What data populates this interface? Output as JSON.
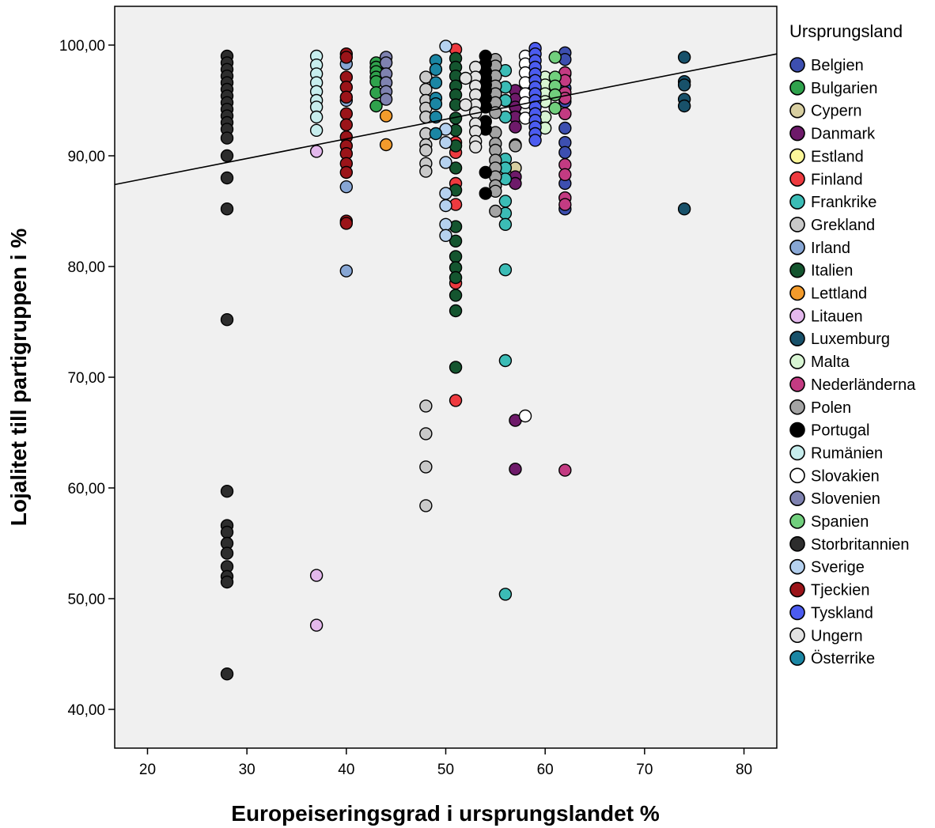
{
  "chart_data": {
    "type": "scatter",
    "title": "",
    "xlabel": "Europeiseringsgrad i ursprungslandet %",
    "ylabel": "Lojalitet till partigruppen i %",
    "xlim": [
      16.7,
      83.3
    ],
    "ylim": [
      36.5,
      103.5
    ],
    "xticks": [
      "20",
      "30",
      "40",
      "50",
      "60",
      "70",
      "80"
    ],
    "yticks": [
      "40,00",
      "50,00",
      "60,00",
      "70,00",
      "80,00",
      "90,00",
      "100,00"
    ],
    "grid": false,
    "background": "#f0f0f0",
    "legend": {
      "title": "Ursprungsland",
      "placement": "right"
    },
    "fit_line": {
      "x": [
        16.7,
        83.3
      ],
      "y": [
        87.4,
        99.2
      ]
    },
    "series": [
      {
        "name": "Belgien",
        "color": "#3d4fb0",
        "points": [
          [
            62,
            99.3
          ],
          [
            62,
            98.7
          ],
          [
            62,
            97.4
          ],
          [
            62,
            96.1
          ],
          [
            62,
            94.9
          ],
          [
            62,
            93.8
          ],
          [
            62,
            92.5
          ],
          [
            62,
            91.2
          ],
          [
            62,
            90.3
          ],
          [
            62,
            87.5
          ],
          [
            62,
            86.2
          ],
          [
            62,
            85.2
          ]
        ]
      },
      {
        "name": "Bulgarien",
        "color": "#2fa24c",
        "points": [
          [
            43,
            98.4
          ],
          [
            43,
            98
          ],
          [
            43,
            97.6
          ],
          [
            43,
            97.1
          ],
          [
            43,
            96.7
          ],
          [
            43,
            95.7
          ],
          [
            43,
            94.5
          ]
        ]
      },
      {
        "name": "Cypern",
        "color": "#d8cfa1",
        "points": [
          [
            57,
            93.6
          ],
          [
            57,
            91
          ],
          [
            57,
            88.9
          ]
        ]
      },
      {
        "name": "Danmark",
        "color": "#6e1a6a",
        "points": [
          [
            57,
            95.9
          ],
          [
            57,
            95.1
          ],
          [
            57,
            94.4
          ],
          [
            57,
            93.5
          ],
          [
            57,
            92.6
          ],
          [
            57,
            88.1
          ],
          [
            57,
            87.5
          ],
          [
            57,
            66.1
          ],
          [
            57,
            61.7
          ]
        ]
      },
      {
        "name": "Estland",
        "color": "#fdf79a",
        "points": []
      },
      {
        "name": "Finland",
        "color": "#ee3a3f",
        "points": [
          [
            51,
            99.6
          ],
          [
            51,
            91.2
          ],
          [
            51,
            90.3
          ],
          [
            51,
            87.5
          ],
          [
            51,
            85.6
          ],
          [
            51,
            78.5
          ],
          [
            51,
            67.9
          ]
        ]
      },
      {
        "name": "Frankrike",
        "color": "#3bbcb6",
        "points": [
          [
            56,
            97.7
          ],
          [
            56,
            96.2
          ],
          [
            56,
            95
          ],
          [
            56,
            93.5
          ],
          [
            56,
            89.7
          ],
          [
            56,
            88.9
          ],
          [
            56,
            87.9
          ],
          [
            56,
            85.9
          ],
          [
            56,
            84.8
          ],
          [
            56,
            83.8
          ],
          [
            56,
            79.7
          ],
          [
            56,
            71.5
          ],
          [
            56,
            50.4
          ]
        ]
      },
      {
        "name": "Grekland",
        "color": "#c9c9c9",
        "points": [
          [
            48,
            97.1
          ],
          [
            48,
            96
          ],
          [
            48,
            95
          ],
          [
            48,
            94.3
          ],
          [
            48,
            93.5
          ],
          [
            48,
            92
          ],
          [
            48,
            91
          ],
          [
            48,
            90.5
          ],
          [
            48,
            89.3
          ],
          [
            48,
            88.6
          ],
          [
            48,
            67.4
          ],
          [
            48,
            64.9
          ],
          [
            48,
            61.9
          ],
          [
            48,
            58.4
          ]
        ]
      },
      {
        "name": "Irland",
        "color": "#87a6d4",
        "points": [
          [
            40,
            98.3
          ],
          [
            40,
            95
          ],
          [
            40,
            87.2
          ],
          [
            40,
            79.6
          ]
        ]
      },
      {
        "name": "Italien",
        "color": "#14552f",
        "points": [
          [
            51,
            98.8
          ],
          [
            51,
            98
          ],
          [
            51,
            97.2
          ],
          [
            51,
            96.3
          ],
          [
            51,
            95.5
          ],
          [
            51,
            94.6
          ],
          [
            51,
            93.4
          ],
          [
            51,
            92.3
          ],
          [
            51,
            90.9
          ],
          [
            51,
            88.9
          ],
          [
            51,
            86.9
          ],
          [
            51,
            83.6
          ],
          [
            51,
            82.3
          ],
          [
            51,
            80.9
          ],
          [
            51,
            79.9
          ],
          [
            51,
            79
          ],
          [
            51,
            77.4
          ],
          [
            51,
            76
          ],
          [
            51,
            70.9
          ]
        ]
      },
      {
        "name": "Lettland",
        "color": "#f39b2c",
        "points": [
          [
            44,
            93.6
          ],
          [
            44,
            91
          ]
        ]
      },
      {
        "name": "Litauen",
        "color": "#e3b8ec",
        "points": [
          [
            37,
            90.4
          ],
          [
            37,
            52.1
          ],
          [
            37,
            47.6
          ]
        ]
      },
      {
        "name": "Luxemburg",
        "color": "#18516a",
        "points": [
          [
            74,
            98.9
          ],
          [
            74,
            96.7
          ],
          [
            74,
            96.4
          ],
          [
            74,
            95.1
          ],
          [
            74,
            94.5
          ],
          [
            74,
            85.2
          ]
        ]
      },
      {
        "name": "Malta",
        "color": "#d8f5d3",
        "points": [
          [
            60,
            97.1
          ],
          [
            60,
            96.4
          ],
          [
            60,
            95.6
          ],
          [
            60,
            94.9
          ],
          [
            60,
            93.5
          ],
          [
            60,
            92.5
          ]
        ]
      },
      {
        "name": "Nederländerna",
        "color": "#c33b82",
        "points": [
          [
            62,
            97.5
          ],
          [
            62,
            96.8
          ],
          [
            62,
            95.7
          ],
          [
            62,
            95.2
          ],
          [
            62,
            93.8
          ],
          [
            62,
            89.2
          ],
          [
            62,
            88.3
          ],
          [
            62,
            86.2
          ],
          [
            62,
            85.6
          ],
          [
            62,
            61.6
          ]
        ]
      },
      {
        "name": "Polen",
        "color": "#a4a4a4",
        "points": [
          [
            55,
            98.7
          ],
          [
            55,
            98.1
          ],
          [
            55,
            97.2
          ],
          [
            55,
            96.3
          ],
          [
            55,
            95.6
          ],
          [
            55,
            94.8
          ],
          [
            55,
            93.9
          ],
          [
            55,
            92.1
          ],
          [
            55,
            91.1
          ],
          [
            55,
            90.5
          ],
          [
            55,
            89.6
          ],
          [
            55,
            88.9
          ],
          [
            55,
            88.1
          ],
          [
            55,
            87.3
          ],
          [
            55,
            86.8
          ],
          [
            55,
            85
          ],
          [
            57,
            90.9
          ]
        ]
      },
      {
        "name": "Portugal",
        "color": "#000000",
        "points": [
          [
            54,
            99
          ],
          [
            54,
            98.3
          ],
          [
            54,
            97.6
          ],
          [
            54,
            97
          ],
          [
            54,
            96.4
          ],
          [
            54,
            95.9
          ],
          [
            54,
            95.2
          ],
          [
            54,
            94.4
          ],
          [
            54,
            93.1
          ],
          [
            54,
            92.4
          ],
          [
            54,
            88.5
          ],
          [
            54,
            86.6
          ]
        ]
      },
      {
        "name": "Rumänien",
        "color": "#c7eded",
        "points": [
          [
            37,
            99
          ],
          [
            37,
            98.2
          ],
          [
            37,
            97.4
          ],
          [
            37,
            96.6
          ],
          [
            37,
            95.8
          ],
          [
            37,
            95
          ],
          [
            37,
            94.4
          ],
          [
            37,
            93.5
          ],
          [
            37,
            92.3
          ]
        ]
      },
      {
        "name": "Slovakien",
        "color": "#ffffff",
        "points": [
          [
            58,
            99
          ],
          [
            58,
            98.3
          ],
          [
            58,
            97.5
          ],
          [
            58,
            96.6
          ],
          [
            58,
            95.6
          ],
          [
            58,
            94.8
          ],
          [
            58,
            93.4
          ],
          [
            58,
            66.5
          ]
        ]
      },
      {
        "name": "Slovenien",
        "color": "#7f82b0",
        "points": [
          [
            44,
            98.9
          ],
          [
            44,
            98.4
          ],
          [
            44,
            97.4
          ],
          [
            44,
            96.6
          ],
          [
            44,
            95.8
          ],
          [
            44,
            95.1
          ]
        ]
      },
      {
        "name": "Spanien",
        "color": "#71cf7d",
        "points": [
          [
            61,
            98.9
          ],
          [
            61,
            97.1
          ],
          [
            61,
            96.3
          ],
          [
            61,
            95.5
          ],
          [
            61,
            94.3
          ]
        ]
      },
      {
        "name": "Storbritannien",
        "color": "#2d2d2d",
        "points": [
          [
            28,
            99
          ],
          [
            28,
            98.4
          ],
          [
            28,
            97.8
          ],
          [
            28,
            97.2
          ],
          [
            28,
            96.6
          ],
          [
            28,
            96
          ],
          [
            28,
            95.4
          ],
          [
            28,
            94.8
          ],
          [
            28,
            94.2
          ],
          [
            28,
            93.6
          ],
          [
            28,
            93
          ],
          [
            28,
            92.4
          ],
          [
            28,
            91.6
          ],
          [
            28,
            90
          ],
          [
            28,
            88
          ],
          [
            28,
            85.2
          ],
          [
            28,
            75.2
          ],
          [
            28,
            59.7
          ],
          [
            28,
            56.6
          ],
          [
            28,
            56
          ],
          [
            28,
            55
          ],
          [
            28,
            54.1
          ],
          [
            28,
            52.9
          ],
          [
            28,
            52
          ],
          [
            28,
            51.5
          ],
          [
            28,
            43.2
          ]
        ]
      },
      {
        "name": "Sverige",
        "color": "#b5d1ef",
        "points": [
          [
            50,
            99.9
          ],
          [
            50,
            92.4
          ],
          [
            50,
            91.2
          ],
          [
            50,
            89.4
          ],
          [
            50,
            86.6
          ],
          [
            50,
            85.5
          ],
          [
            50,
            83.8
          ],
          [
            50,
            82.8
          ]
        ]
      },
      {
        "name": "Tjeckien",
        "color": "#9b1419",
        "points": [
          [
            40,
            99.2
          ],
          [
            40,
            98.9
          ],
          [
            40,
            97.1
          ],
          [
            40,
            96.2
          ],
          [
            40,
            95.3
          ],
          [
            40,
            93.8
          ],
          [
            40,
            92.8
          ],
          [
            40,
            91.7
          ],
          [
            40,
            90.9
          ],
          [
            40,
            90.2
          ],
          [
            40,
            89.3
          ],
          [
            40,
            88.5
          ],
          [
            40,
            84.1
          ],
          [
            40,
            83.9
          ]
        ]
      },
      {
        "name": "Tyskland",
        "color": "#4c5cf0",
        "points": [
          [
            59,
            99.7
          ],
          [
            59,
            99.2
          ],
          [
            59,
            98.6
          ],
          [
            59,
            98
          ],
          [
            59,
            97.4
          ],
          [
            59,
            96.8
          ],
          [
            59,
            96.2
          ],
          [
            59,
            95.6
          ],
          [
            59,
            95
          ],
          [
            59,
            94.4
          ],
          [
            59,
            93.8
          ],
          [
            59,
            93.2
          ],
          [
            59,
            92.6
          ],
          [
            59,
            92
          ],
          [
            59,
            91.4
          ]
        ]
      },
      {
        "name": "Ungern",
        "color": "#e2e2e2",
        "points": [
          [
            53,
            98
          ],
          [
            53,
            97.1
          ],
          [
            53,
            96.3
          ],
          [
            53,
            95.5
          ],
          [
            53,
            94.6
          ],
          [
            53,
            93.9
          ],
          [
            53,
            92.9
          ],
          [
            53,
            92.2
          ],
          [
            53,
            91.3
          ],
          [
            53,
            90.8
          ],
          [
            52,
            97
          ],
          [
            52,
            94.6
          ]
        ]
      },
      {
        "name": "Österrike",
        "color": "#1b86a4",
        "points": [
          [
            49,
            98.6
          ],
          [
            49,
            97.8
          ],
          [
            49,
            96.6
          ],
          [
            49,
            95.2
          ],
          [
            49,
            94.7
          ],
          [
            49,
            93.5
          ],
          [
            49,
            92
          ]
        ]
      }
    ]
  }
}
